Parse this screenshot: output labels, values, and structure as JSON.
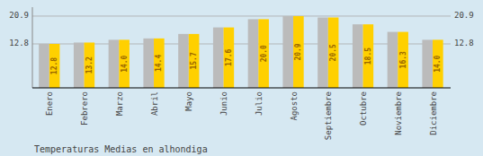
{
  "chart_data": {
    "type": "bar",
    "title": "Temperaturas Medias en alhondiga",
    "categories": [
      "Enero",
      "Febrero",
      "Marzo",
      "Abril",
      "Mayo",
      "Junio",
      "Julio",
      "Agosto",
      "Septiembre",
      "Octubre",
      "Noviembre",
      "Diciembre"
    ],
    "values": [
      12.8,
      13.2,
      14.0,
      14.4,
      15.7,
      17.6,
      20.0,
      20.9,
      20.5,
      18.5,
      16.3,
      14.0
    ],
    "value_labels": [
      "12.8",
      "13.2",
      "14.0",
      "14.4",
      "15.7",
      "17.6",
      "20.0",
      "20.9",
      "20.5",
      "18.5",
      "16.3",
      "14.0"
    ],
    "color": "#FFD000",
    "ylim": [
      0,
      23.5
    ],
    "yticks": [
      12.8,
      20.9
    ],
    "grid": true,
    "data_labels": true
  }
}
